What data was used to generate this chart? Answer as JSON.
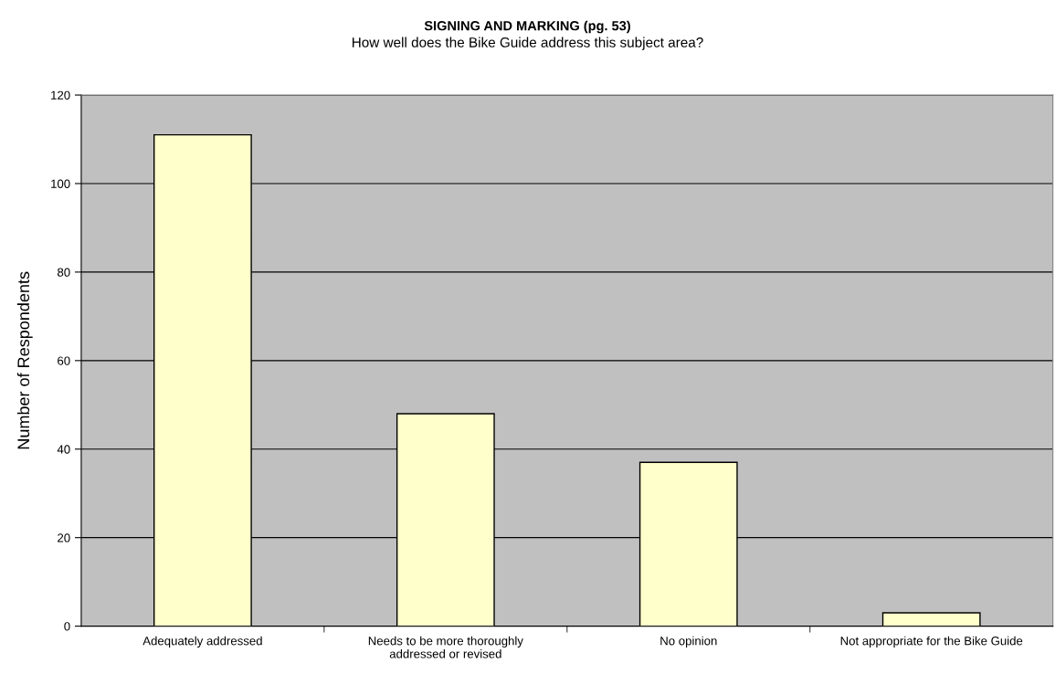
{
  "chart_data": {
    "type": "bar",
    "title": "SIGNING AND MARKING (pg. 53)",
    "subtitle": "How well does the Bike Guide address this subject area?",
    "ylabel": "Number of Respondents",
    "categories": [
      "Adequately addressed",
      "Needs to be more thoroughly\naddressed or revised",
      "No opinion",
      "Not appropriate for the Bike Guide"
    ],
    "values": [
      111,
      48,
      37,
      3
    ],
    "color": "#ffffcc",
    "ylim": [
      0,
      120
    ],
    "yticks": [
      0,
      20,
      40,
      60,
      80,
      100,
      120
    ],
    "grid": "y",
    "legend": false
  }
}
